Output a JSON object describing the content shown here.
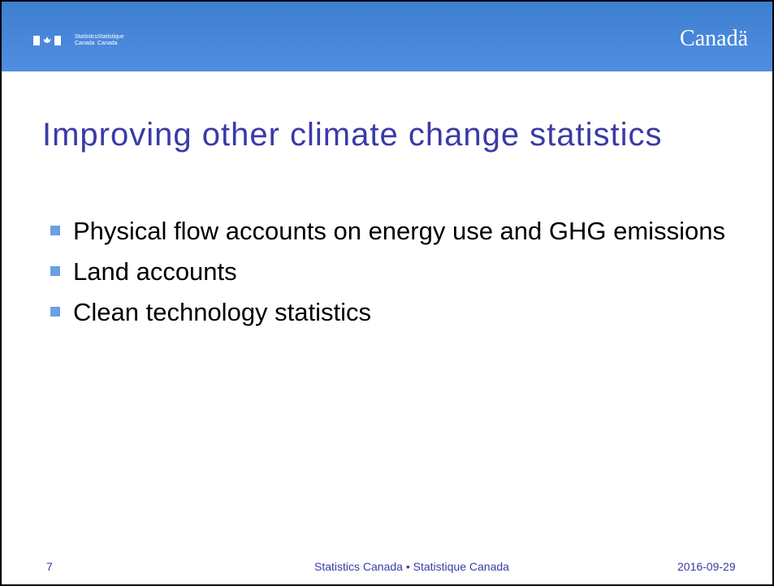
{
  "header": {
    "logo_en": "Statistics\nCanada",
    "logo_fr": "Statistique\nCanada",
    "wordmark": "Canadä"
  },
  "title": "Improving other climate change statistics",
  "bullets": [
    "Physical flow accounts on energy use and GHG emissions",
    "Land accounts",
    "Clean technology statistics"
  ],
  "footer": {
    "page": "7",
    "center": "Statistics Canada • Statistique Canada",
    "date": "2016-09-29"
  }
}
